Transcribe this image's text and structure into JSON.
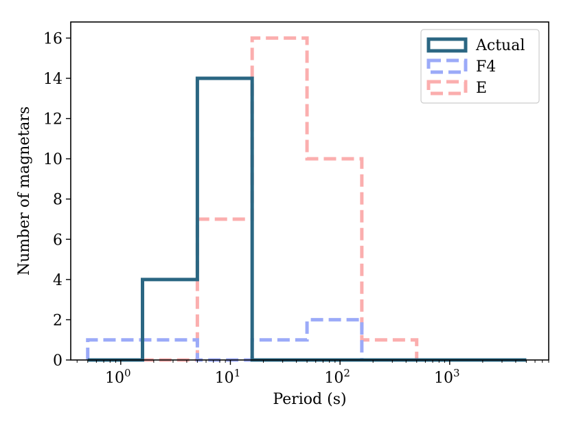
{
  "chart_data": {
    "type": "histogram-step",
    "title": "",
    "xlabel": "Period (s)",
    "ylabel": "Number of magnetars",
    "xscale": "log",
    "xlim": [
      0.35,
      8000
    ],
    "ylim": [
      0,
      16.8
    ],
    "y_ticks": [
      0,
      2,
      4,
      6,
      8,
      10,
      12,
      14,
      16
    ],
    "x_ticks": [
      {
        "value": 1,
        "base": "10",
        "exp": "0"
      },
      {
        "value": 10,
        "base": "10",
        "exp": "1"
      },
      {
        "value": 100,
        "base": "10",
        "exp": "2"
      },
      {
        "value": 1000,
        "base": "10",
        "exp": "3"
      }
    ],
    "bin_edges": [
      0.5,
      1.58,
      5.0,
      15.8,
      50.0,
      158.0,
      500.0,
      1580.0,
      5000.0
    ],
    "legend_position": "top-right",
    "series": [
      {
        "name": "Actual",
        "color": "#2a6682",
        "style": "solid",
        "values": [
          0,
          4,
          14,
          0,
          0,
          0,
          0,
          0
        ]
      },
      {
        "name": "F4",
        "color": "#9baaf8",
        "style": "dashed",
        "values": [
          1,
          1,
          0,
          1,
          2,
          0,
          0,
          0
        ]
      },
      {
        "name": "E",
        "color": "#fbaeae",
        "style": "dashed",
        "values": [
          0,
          0,
          7,
          16,
          10,
          1,
          0,
          0
        ]
      }
    ]
  }
}
